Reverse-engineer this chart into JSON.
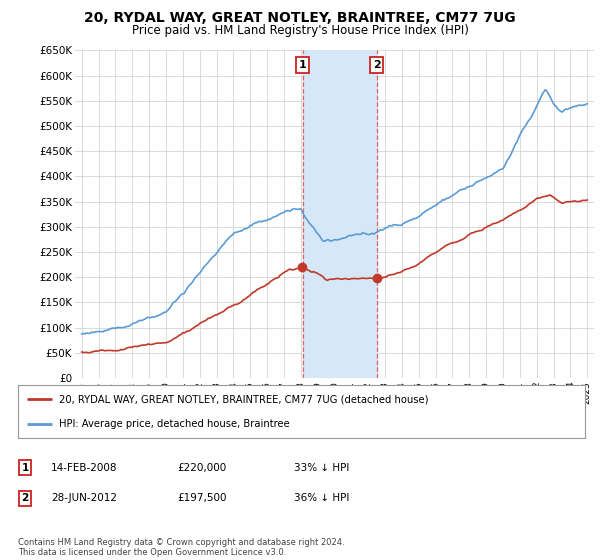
{
  "title": "20, RYDAL WAY, GREAT NOTLEY, BRAINTREE, CM77 7UG",
  "subtitle": "Price paid vs. HM Land Registry's House Price Index (HPI)",
  "ylim": [
    0,
    650000
  ],
  "yticks": [
    0,
    50000,
    100000,
    150000,
    200000,
    250000,
    300000,
    350000,
    400000,
    450000,
    500000,
    550000,
    600000,
    650000
  ],
  "ytick_labels": [
    "£0",
    "£50K",
    "£100K",
    "£150K",
    "£200K",
    "£250K",
    "£300K",
    "£350K",
    "£400K",
    "£450K",
    "£500K",
    "£550K",
    "£600K",
    "£650K"
  ],
  "hpi_color": "#5b9bd5",
  "price_color": "#c0392b",
  "transaction1_date": 2008.12,
  "transaction2_date": 2012.5,
  "transaction1_price": 220000,
  "transaction2_price": 197500,
  "legend_line1": "20, RYDAL WAY, GREAT NOTLEY, BRAINTREE, CM77 7UG (detached house)",
  "legend_line2": "HPI: Average price, detached house, Braintree",
  "table_row1": [
    "1",
    "14-FEB-2008",
    "£220,000",
    "33% ↓ HPI"
  ],
  "table_row2": [
    "2",
    "28-JUN-2012",
    "£197,500",
    "36% ↓ HPI"
  ],
  "footnote": "Contains HM Land Registry data © Crown copyright and database right 2024.\nThis data is licensed under the Open Government Licence v3.0.",
  "background_color": "#ffffff",
  "grid_color": "#cccccc",
  "shade_color": "#d6e8f7"
}
